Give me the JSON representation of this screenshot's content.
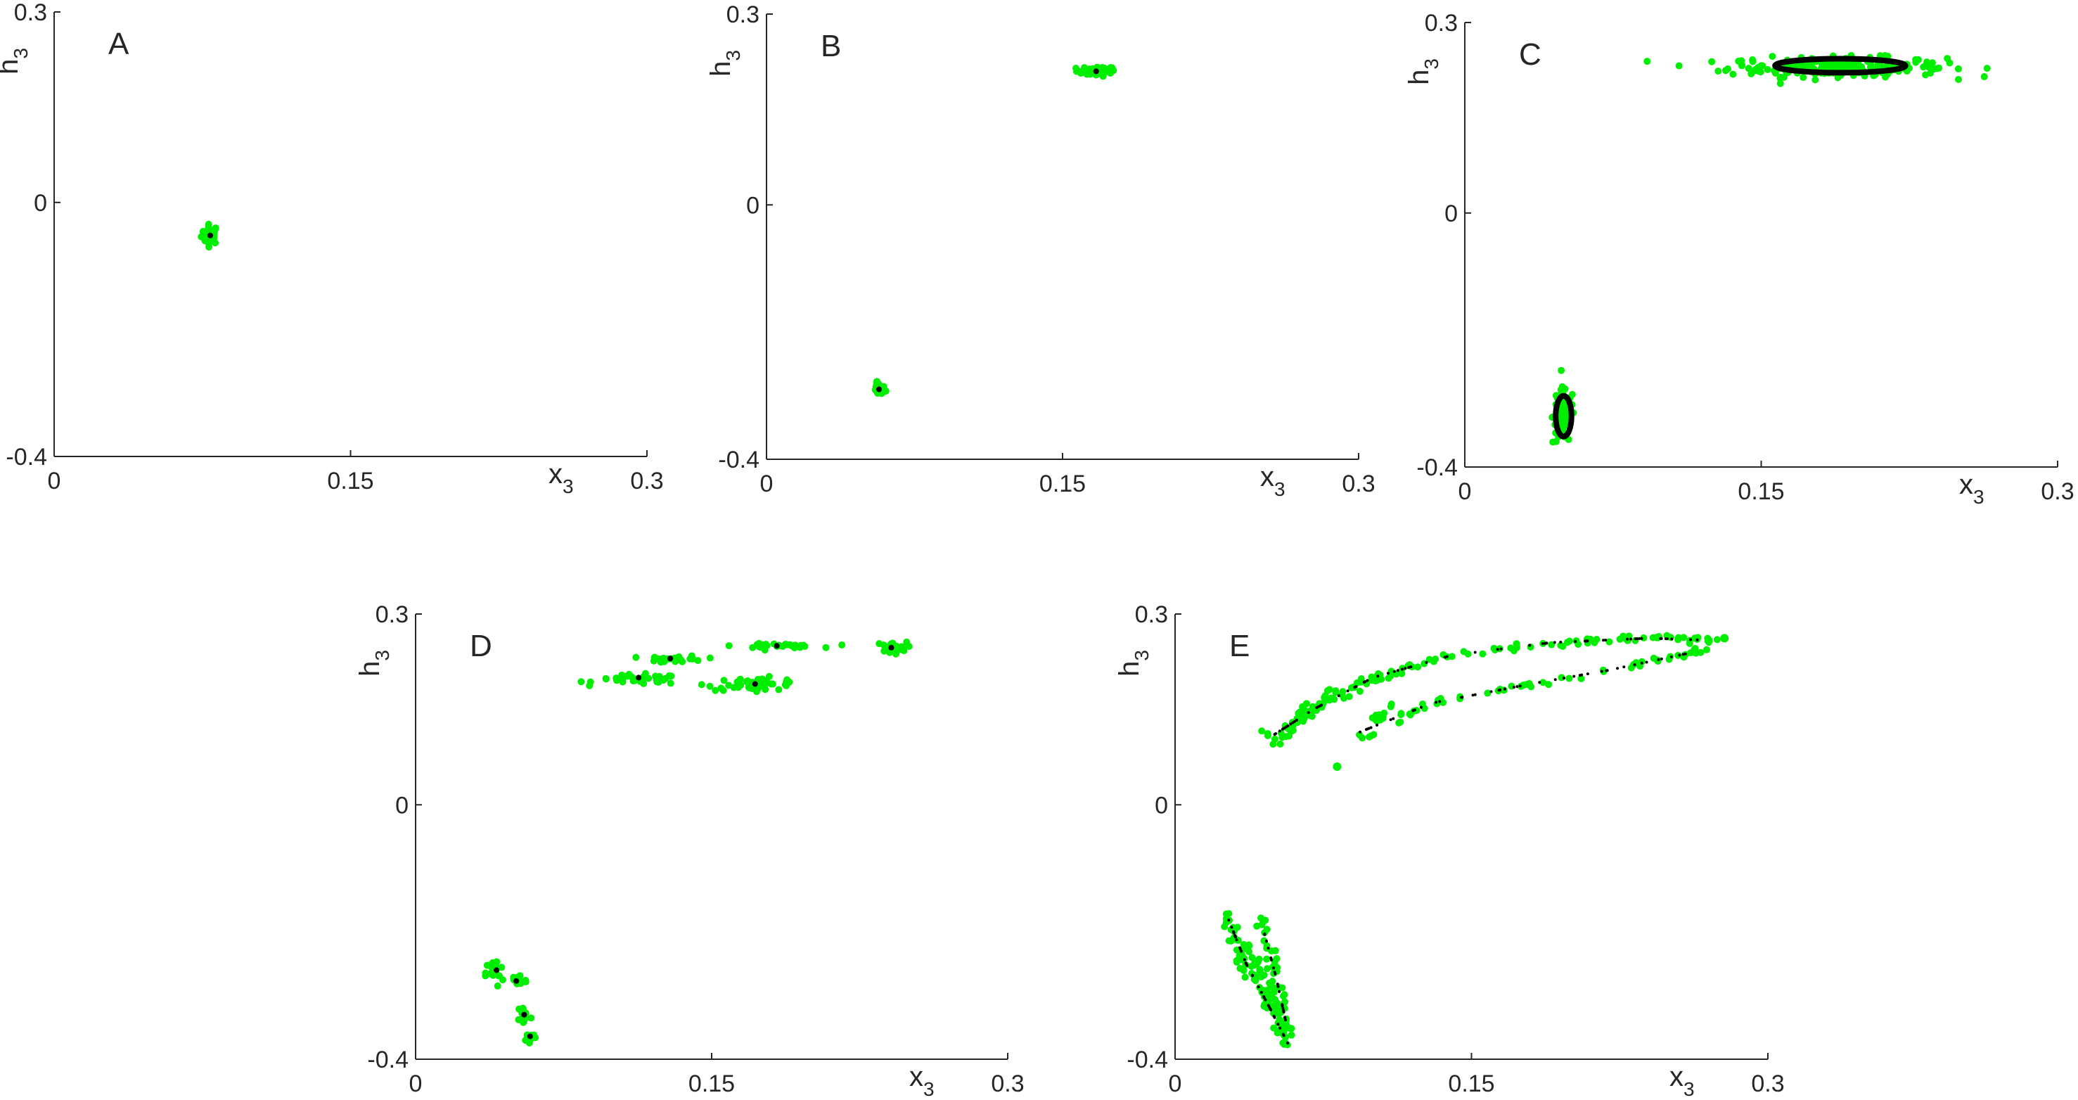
{
  "colors": {
    "cloud": "#00ee00",
    "attractor": "#000000",
    "axis": "#262626"
  },
  "chart_data": [
    {
      "type": "scatter",
      "panel": "A",
      "xlabel": "x",
      "xlabel_sub": "3",
      "ylabel": "h",
      "ylabel_sub": "3",
      "xlim": [
        0,
        0.3
      ],
      "ylim": [
        -0.4,
        0.3
      ],
      "xticks": [
        "0",
        "0.15",
        "0.3"
      ],
      "yticks": [
        "-0.4",
        "0",
        "0.3"
      ],
      "green_clusters": [
        {
          "cx": 0.079,
          "cy": -0.05,
          "rx": 0.004,
          "ry": 0.014,
          "count": 30
        }
      ],
      "green_points": [],
      "black_points": [
        [
          0.079,
          -0.052
        ]
      ],
      "black_rings": [],
      "black_trails": [],
      "green_trails": []
    },
    {
      "type": "scatter",
      "panel": "B",
      "xlabel": "x",
      "xlabel_sub": "3",
      "ylabel": "h",
      "ylabel_sub": "3",
      "xlim": [
        0,
        0.3
      ],
      "ylim": [
        -0.4,
        0.3
      ],
      "xticks": [
        "0",
        "0.15",
        "0.3"
      ],
      "yticks": [
        "-0.4",
        "0",
        "0.3"
      ],
      "green_clusters": [
        {
          "cx": 0.167,
          "cy": 0.21,
          "rx": 0.009,
          "ry": 0.007,
          "count": 40
        },
        {
          "cx": 0.057,
          "cy": -0.29,
          "rx": 0.003,
          "ry": 0.009,
          "count": 25
        }
      ],
      "green_points": [],
      "black_points": [
        [
          0.167,
          0.21
        ],
        [
          0.057,
          -0.29
        ]
      ],
      "black_rings": [],
      "black_trails": [],
      "green_trails": []
    },
    {
      "type": "scatter",
      "panel": "C",
      "xlabel": "x",
      "xlabel_sub": "3",
      "ylabel": "h",
      "ylabel_sub": "3",
      "xlim": [
        0,
        0.3
      ],
      "ylim": [
        -0.4,
        0.3
      ],
      "xticks": [
        "0",
        "0.15",
        "0.3"
      ],
      "yticks": [
        "-0.4",
        "0",
        "0.3"
      ],
      "green_clusters": [
        {
          "cx": 0.188,
          "cy": 0.23,
          "rx": 0.05,
          "ry": 0.014,
          "count": 220
        },
        {
          "cx": 0.05,
          "cy": -0.32,
          "rx": 0.005,
          "ry": 0.04,
          "count": 90
        }
      ],
      "green_points": [],
      "black_points": [],
      "black_rings": [
        {
          "cx": 0.19,
          "cy": 0.232,
          "rx": 0.033,
          "ry": 0.011
        },
        {
          "cx": 0.05,
          "cy": -0.32,
          "rx": 0.004,
          "ry": 0.032
        }
      ],
      "black_trails": [],
      "green_trails": []
    },
    {
      "type": "scatter",
      "panel": "D",
      "xlabel": "x",
      "xlabel_sub": "3",
      "ylabel": "h",
      "ylabel_sub": "3",
      "xlim": [
        0,
        0.3
      ],
      "ylim": [
        -0.4,
        0.3
      ],
      "xticks": [
        "0",
        "0.15",
        "0.3"
      ],
      "yticks": [
        "-0.4",
        "0",
        "0.3"
      ],
      "green_clusters": [
        {
          "cx": 0.113,
          "cy": 0.197,
          "rx": 0.02,
          "ry": 0.007,
          "count": 40
        },
        {
          "cx": 0.132,
          "cy": 0.229,
          "rx": 0.013,
          "ry": 0.005,
          "count": 30
        },
        {
          "cx": 0.172,
          "cy": 0.19,
          "rx": 0.022,
          "ry": 0.009,
          "count": 45
        },
        {
          "cx": 0.183,
          "cy": 0.25,
          "rx": 0.019,
          "ry": 0.003,
          "count": 35
        },
        {
          "cx": 0.241,
          "cy": 0.247,
          "rx": 0.007,
          "ry": 0.008,
          "count": 30
        },
        {
          "cx": 0.04,
          "cy": -0.265,
          "rx": 0.004,
          "ry": 0.02,
          "count": 25
        },
        {
          "cx": 0.052,
          "cy": -0.276,
          "rx": 0.004,
          "ry": 0.01,
          "count": 20
        },
        {
          "cx": 0.055,
          "cy": -0.33,
          "rx": 0.003,
          "ry": 0.015,
          "count": 15
        },
        {
          "cx": 0.058,
          "cy": -0.365,
          "rx": 0.003,
          "ry": 0.006,
          "count": 15
        }
      ],
      "green_points": [],
      "black_points": [
        [
          0.113,
          0.2
        ],
        [
          0.129,
          0.23
        ],
        [
          0.172,
          0.19
        ],
        [
          0.183,
          0.25
        ],
        [
          0.241,
          0.247
        ],
        [
          0.041,
          -0.26
        ],
        [
          0.051,
          -0.277
        ],
        [
          0.055,
          -0.33
        ],
        [
          0.058,
          -0.364
        ]
      ],
      "black_rings": [],
      "black_trails": [],
      "green_trails": []
    },
    {
      "type": "scatter",
      "panel": "E",
      "xlabel": "x",
      "xlabel_sub": "3",
      "ylabel": "h",
      "ylabel_sub": "3",
      "xlim": [
        0,
        0.3
      ],
      "ylim": [
        -0.4,
        0.3
      ],
      "xticks": [
        "0",
        "0.15",
        "0.3"
      ],
      "yticks": [
        "-0.4",
        "0",
        "0.3"
      ],
      "green_clusters": [],
      "green_points": [
        [
          0.082,
          0.06
        ],
        [
          0.278,
          0.262
        ],
        [
          0.27,
          0.258
        ]
      ],
      "black_points": [],
      "black_rings": [],
      "green_trails": [
        {
          "path": [
            [
              0.048,
              0.09
            ],
            [
              0.07,
              0.15
            ],
            [
              0.1,
              0.2
            ],
            [
              0.14,
              0.235
            ],
            [
              0.19,
              0.255
            ],
            [
              0.24,
              0.262
            ],
            [
              0.275,
              0.26
            ]
          ],
          "count": 120,
          "jitter": 0.005
        },
        {
          "path": [
            [
              0.048,
              0.11
            ],
            [
              0.08,
              0.175
            ],
            [
              0.11,
              0.21
            ]
          ],
          "count": 35,
          "jitter": 0.006
        },
        {
          "path": [
            [
              0.09,
              0.1
            ],
            [
              0.13,
              0.16
            ],
            [
              0.18,
              0.19
            ],
            [
              0.22,
              0.21
            ],
            [
              0.27,
              0.245
            ]
          ],
          "count": 60,
          "jitter": 0.005
        },
        {
          "path": [
            [
              0.1,
              0.13
            ],
            [
              0.11,
              0.16
            ]
          ],
          "count": 12,
          "jitter": 0.005
        },
        {
          "path": [
            [
              0.026,
              -0.17
            ],
            [
              0.035,
              -0.25
            ],
            [
              0.048,
              -0.32
            ],
            [
              0.057,
              -0.38
            ]
          ],
          "count": 60,
          "jitter": 0.004
        },
        {
          "path": [
            [
              0.033,
              -0.21
            ],
            [
              0.045,
              -0.28
            ],
            [
              0.055,
              -0.36
            ]
          ],
          "count": 35,
          "jitter": 0.004
        },
        {
          "path": [
            [
              0.045,
              -0.18
            ],
            [
              0.05,
              -0.25
            ],
            [
              0.055,
              -0.33
            ],
            [
              0.058,
              -0.37
            ]
          ],
          "count": 40,
          "jitter": 0.003
        },
        {
          "path": [
            [
              0.038,
              -0.22
            ],
            [
              0.05,
              -0.3
            ],
            [
              0.057,
              -0.375
            ]
          ],
          "count": 30,
          "jitter": 0.003
        }
      ],
      "black_trails": [
        {
          "path": [
            [
              0.05,
              0.11
            ],
            [
              0.07,
              0.15
            ],
            [
              0.1,
              0.2
            ],
            [
              0.14,
              0.235
            ],
            [
              0.19,
              0.255
            ],
            [
              0.24,
              0.262
            ],
            [
              0.275,
              0.258
            ]
          ],
          "count": 70
        },
        {
          "path": [
            [
              0.09,
              0.11
            ],
            [
              0.13,
              0.16
            ],
            [
              0.18,
              0.19
            ],
            [
              0.22,
              0.212
            ],
            [
              0.27,
              0.245
            ]
          ],
          "count": 45
        },
        {
          "path": [
            [
              0.027,
              -0.18
            ],
            [
              0.036,
              -0.25
            ],
            [
              0.048,
              -0.32
            ],
            [
              0.057,
              -0.375
            ]
          ],
          "count": 40
        },
        {
          "path": [
            [
              0.045,
              -0.2
            ],
            [
              0.051,
              -0.27
            ],
            [
              0.056,
              -0.34
            ]
          ],
          "count": 25
        }
      ]
    }
  ]
}
